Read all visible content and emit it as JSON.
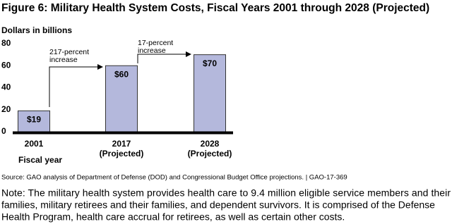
{
  "chart_data": {
    "type": "bar",
    "title": "Figure 6: Military Health System Costs, Fiscal Years 2001 through 2028 (Projected)",
    "y_label": "Dollars in billions",
    "x_label": "Fiscal year",
    "categories": [
      "2001",
      "2017",
      "2028"
    ],
    "category_sublabels": [
      null,
      "(Projected)",
      "(Projected)"
    ],
    "values": [
      19,
      60,
      70
    ],
    "value_labels": [
      "$19",
      "$60",
      "$70"
    ],
    "color": "#b4b8dc",
    "ylim": [
      0,
      80
    ],
    "yticks": [
      0,
      20,
      40,
      60,
      80
    ],
    "grid": false,
    "annotations": [
      {
        "lines": [
          "217-percent",
          "increase"
        ]
      },
      {
        "lines": [
          "17-percent",
          "increase"
        ]
      }
    ],
    "source": "Source: GAO analysis of Department of Defense (DOD) and Congressional Budget Office projections.  |  GAO-17-369",
    "note_lines": [
      "Note: The military health system provides health care to 9.4 million eligible service members and their",
      "families, military retirees and their families, and dependent survivors. It is comprised of the Defense",
      "Health Program, health care accrual for retirees, as well as certain other costs."
    ]
  }
}
